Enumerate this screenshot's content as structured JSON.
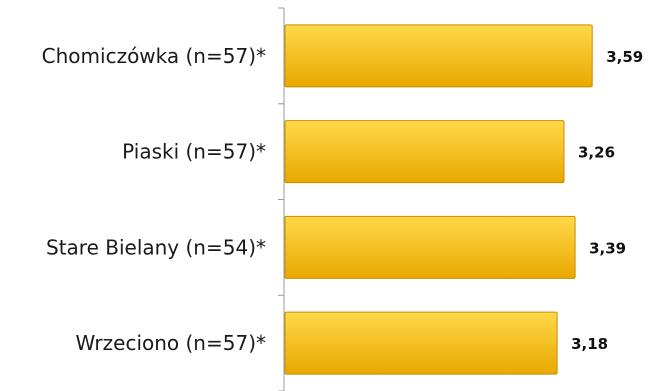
{
  "chart_data": {
    "type": "bar",
    "orientation": "horizontal",
    "categories": [
      "Chomiczówka (n=57)*",
      "Piaski (n=57)*",
      "Stare Bielany (n=54)*",
      "Wrzeciono (n=57)*"
    ],
    "values": [
      3.59,
      3.26,
      3.39,
      3.18
    ],
    "value_labels": [
      "3,59",
      "3,26",
      "3,39",
      "3,18"
    ],
    "xlim": [
      0,
      4
    ],
    "colors": {
      "bar_top": "#FFD84A",
      "bar_bottom": "#E9A800",
      "bar_edge": "#C98E00",
      "axis": "#9A9A9A"
    },
    "grid": false,
    "legend": "none"
  }
}
